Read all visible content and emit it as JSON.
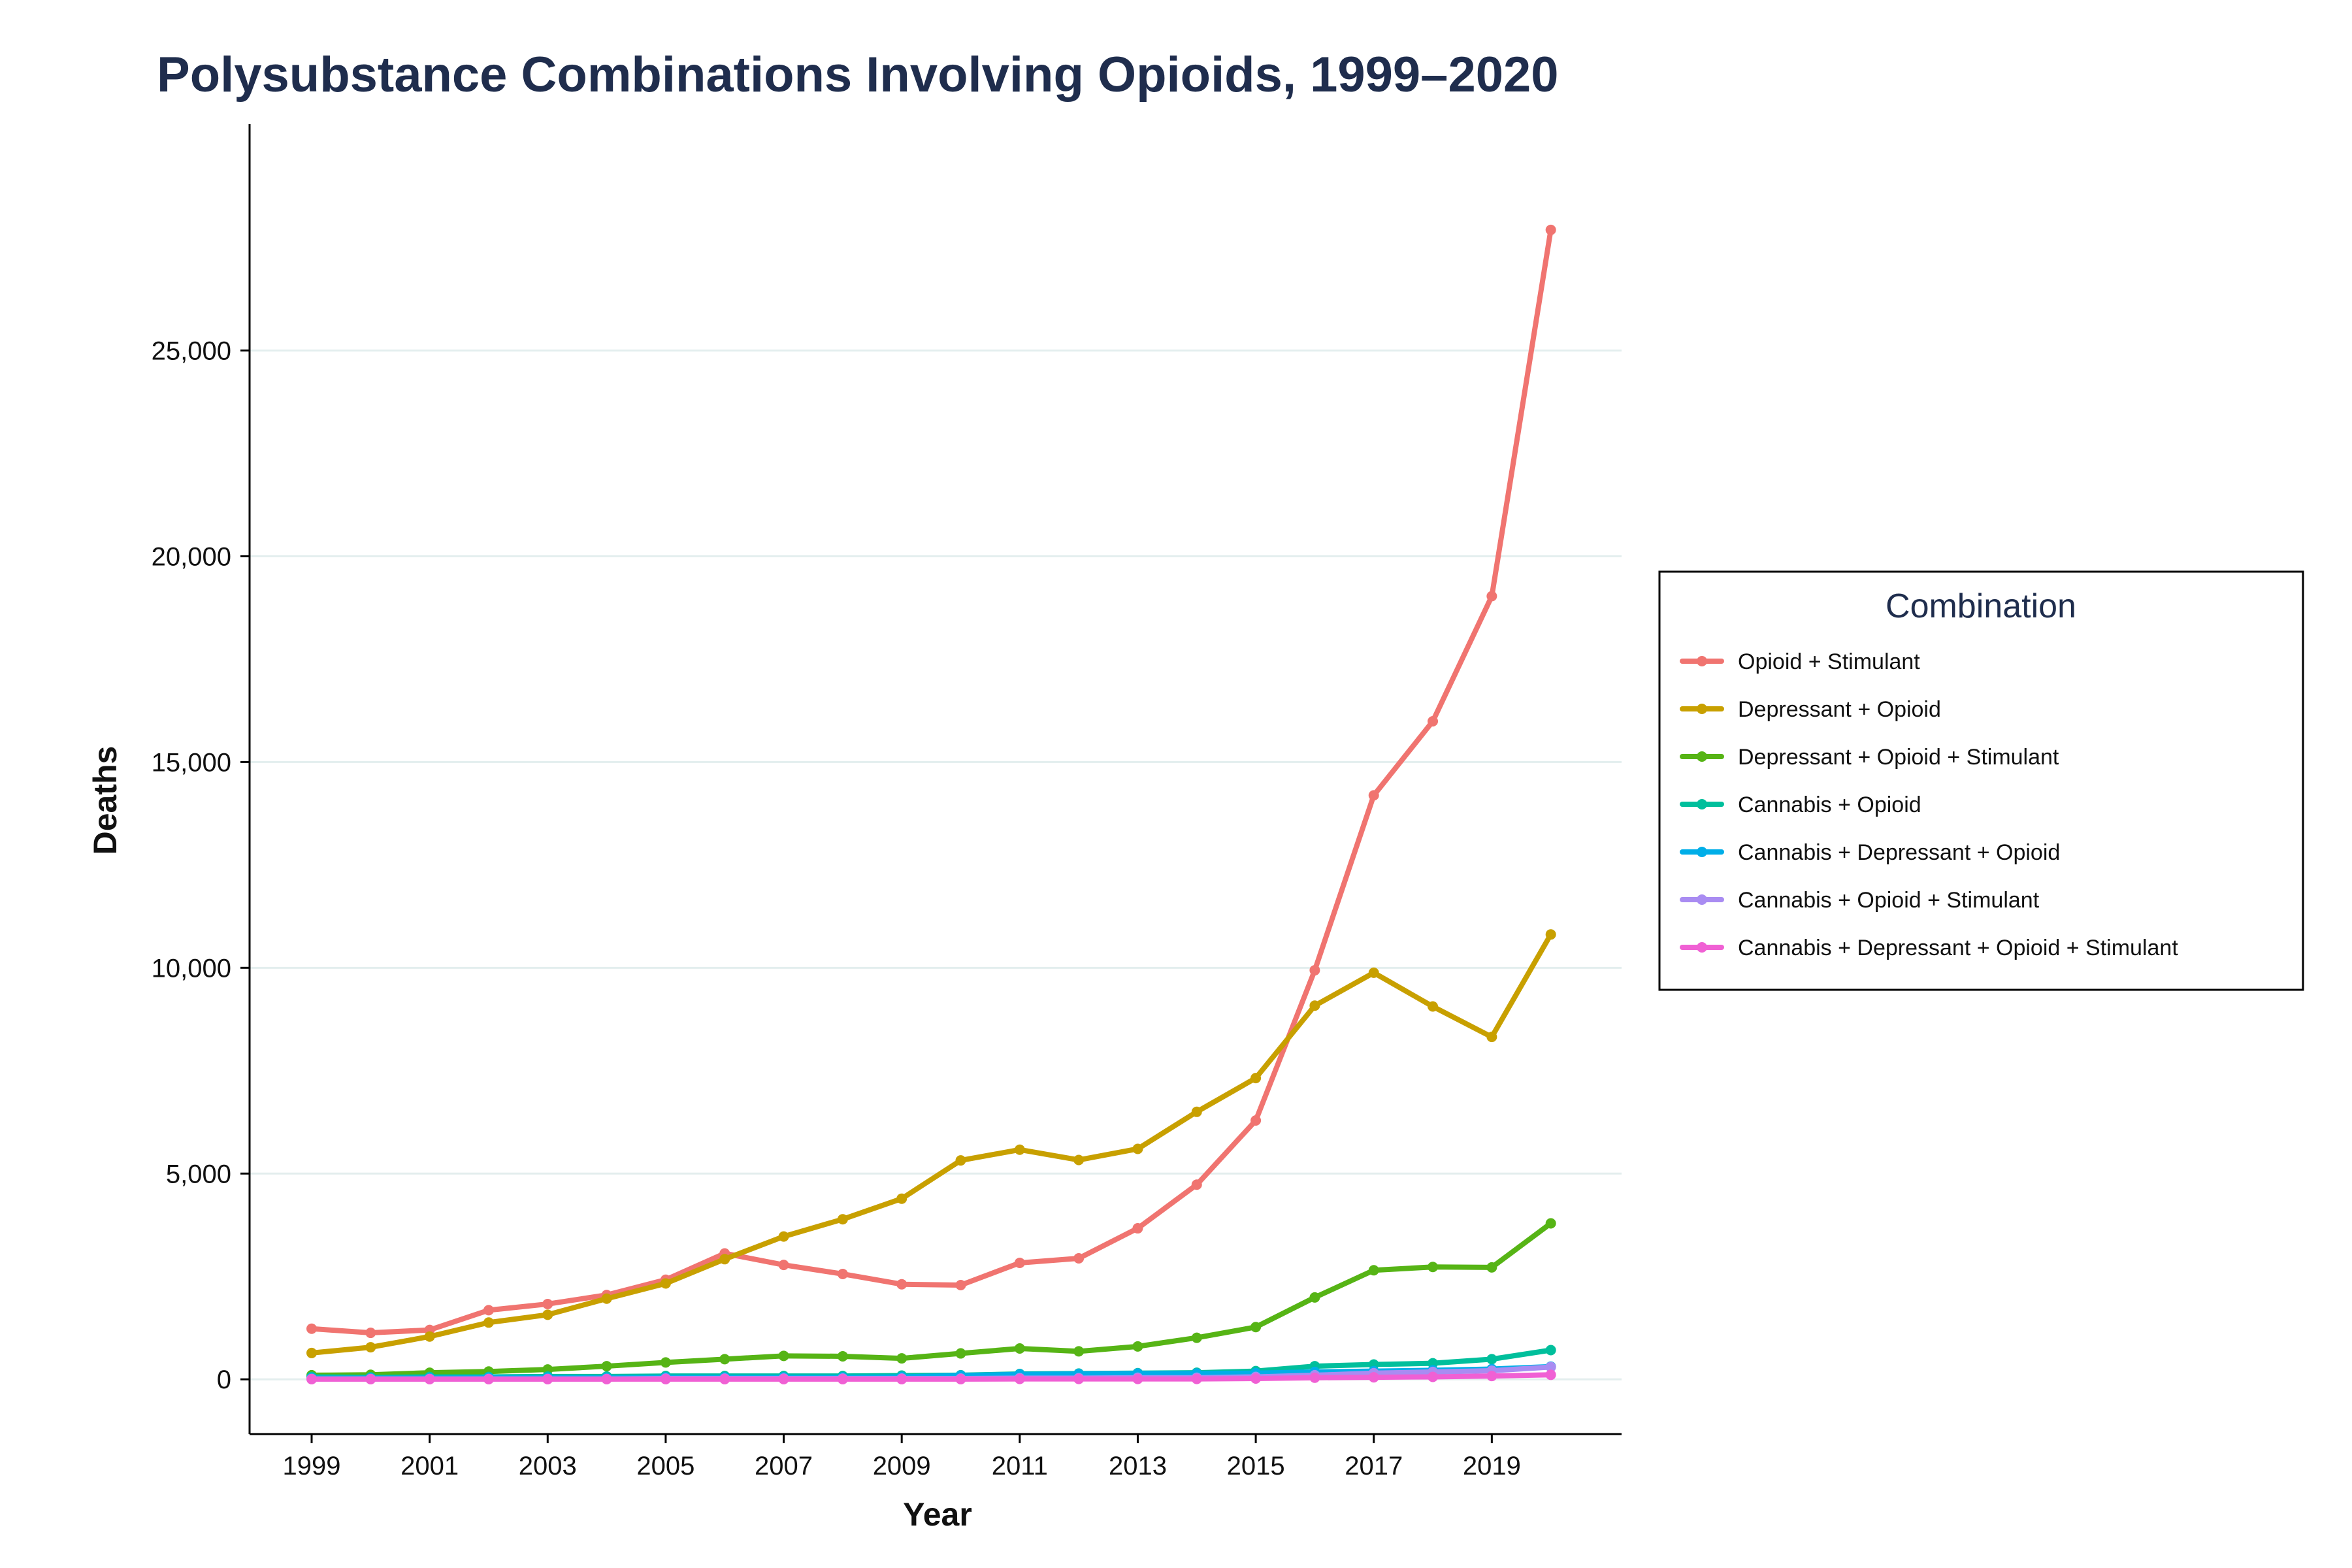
{
  "chart_data": {
    "type": "line",
    "title": "Polysubstance Combinations Involving Opioids, 1999–2020",
    "xlabel": "Year",
    "ylabel": "Deaths",
    "x": [
      1999,
      2000,
      2001,
      2002,
      2003,
      2004,
      2005,
      2006,
      2007,
      2008,
      2009,
      2010,
      2011,
      2012,
      2013,
      2014,
      2015,
      2016,
      2017,
      2018,
      2019,
      2020
    ],
    "xticks": [
      1999,
      2001,
      2003,
      2005,
      2007,
      2009,
      2011,
      2013,
      2015,
      2017,
      2019
    ],
    "xtick_labels": [
      "1999",
      "2001",
      "2003",
      "2005",
      "2007",
      "2009",
      "2011",
      "2013",
      "2015",
      "2017",
      "2019"
    ],
    "yticks": [
      0,
      5000,
      10000,
      15000,
      20000,
      25000
    ],
    "ytick_labels": [
      "0",
      "5,000",
      "10,000",
      "15,000",
      "20,000",
      "25,000"
    ],
    "xlim": [
      1999,
      2021
    ],
    "ylim": [
      0,
      29000
    ],
    "grid": "horizontal",
    "legend": {
      "title": "Combination",
      "placement": "right"
    },
    "series": [
      {
        "name": "Opioid + Stimulant",
        "color": "#f07470",
        "values": [
          1230,
          1130,
          1200,
          1680,
          1830,
          2050,
          2420,
          3060,
          2780,
          2560,
          2310,
          2290,
          2830,
          2940,
          3670,
          4730,
          6290,
          9940,
          14190,
          15990,
          19030,
          27930
        ]
      },
      {
        "name": "Depressant + Opioid",
        "color": "#c8a000",
        "values": [
          640,
          780,
          1040,
          1380,
          1570,
          1960,
          2330,
          2920,
          3470,
          3890,
          4390,
          5320,
          5580,
          5330,
          5600,
          6500,
          7320,
          9080,
          9880,
          9060,
          8320,
          10810
        ]
      },
      {
        "name": "Depressant + Opioid + Stimulant",
        "color": "#56b415",
        "values": [
          100,
          110,
          160,
          190,
          240,
          320,
          410,
          490,
          570,
          560,
          510,
          630,
          750,
          680,
          800,
          1010,
          1270,
          1990,
          2650,
          2730,
          2720,
          3790
        ]
      },
      {
        "name": "Cannabis + Opioid",
        "color": "#00bf9c",
        "values": [
          60,
          50,
          60,
          60,
          70,
          70,
          80,
          80,
          80,
          80,
          90,
          100,
          130,
          140,
          150,
          160,
          200,
          320,
          360,
          390,
          490,
          710
        ]
      },
      {
        "name": "Cannabis + Depressant + Opioid",
        "color": "#00aee8",
        "values": [
          30,
          30,
          30,
          40,
          40,
          40,
          50,
          50,
          50,
          50,
          60,
          90,
          120,
          130,
          140,
          140,
          150,
          180,
          200,
          220,
          250,
          310
        ]
      },
      {
        "name": "Cannabis + Opioid + Stimulant",
        "color": "#a98cf2",
        "values": [
          10,
          10,
          10,
          10,
          10,
          10,
          20,
          20,
          20,
          20,
          20,
          20,
          30,
          30,
          40,
          40,
          60,
          100,
          150,
          180,
          210,
          300
        ]
      },
      {
        "name": "Cannabis + Depressant + Opioid + Stimulant",
        "color": "#f060d4",
        "values": [
          5,
          5,
          5,
          5,
          5,
          5,
          5,
          5,
          5,
          5,
          5,
          5,
          10,
          10,
          10,
          10,
          20,
          40,
          50,
          60,
          80,
          110
        ]
      }
    ]
  }
}
